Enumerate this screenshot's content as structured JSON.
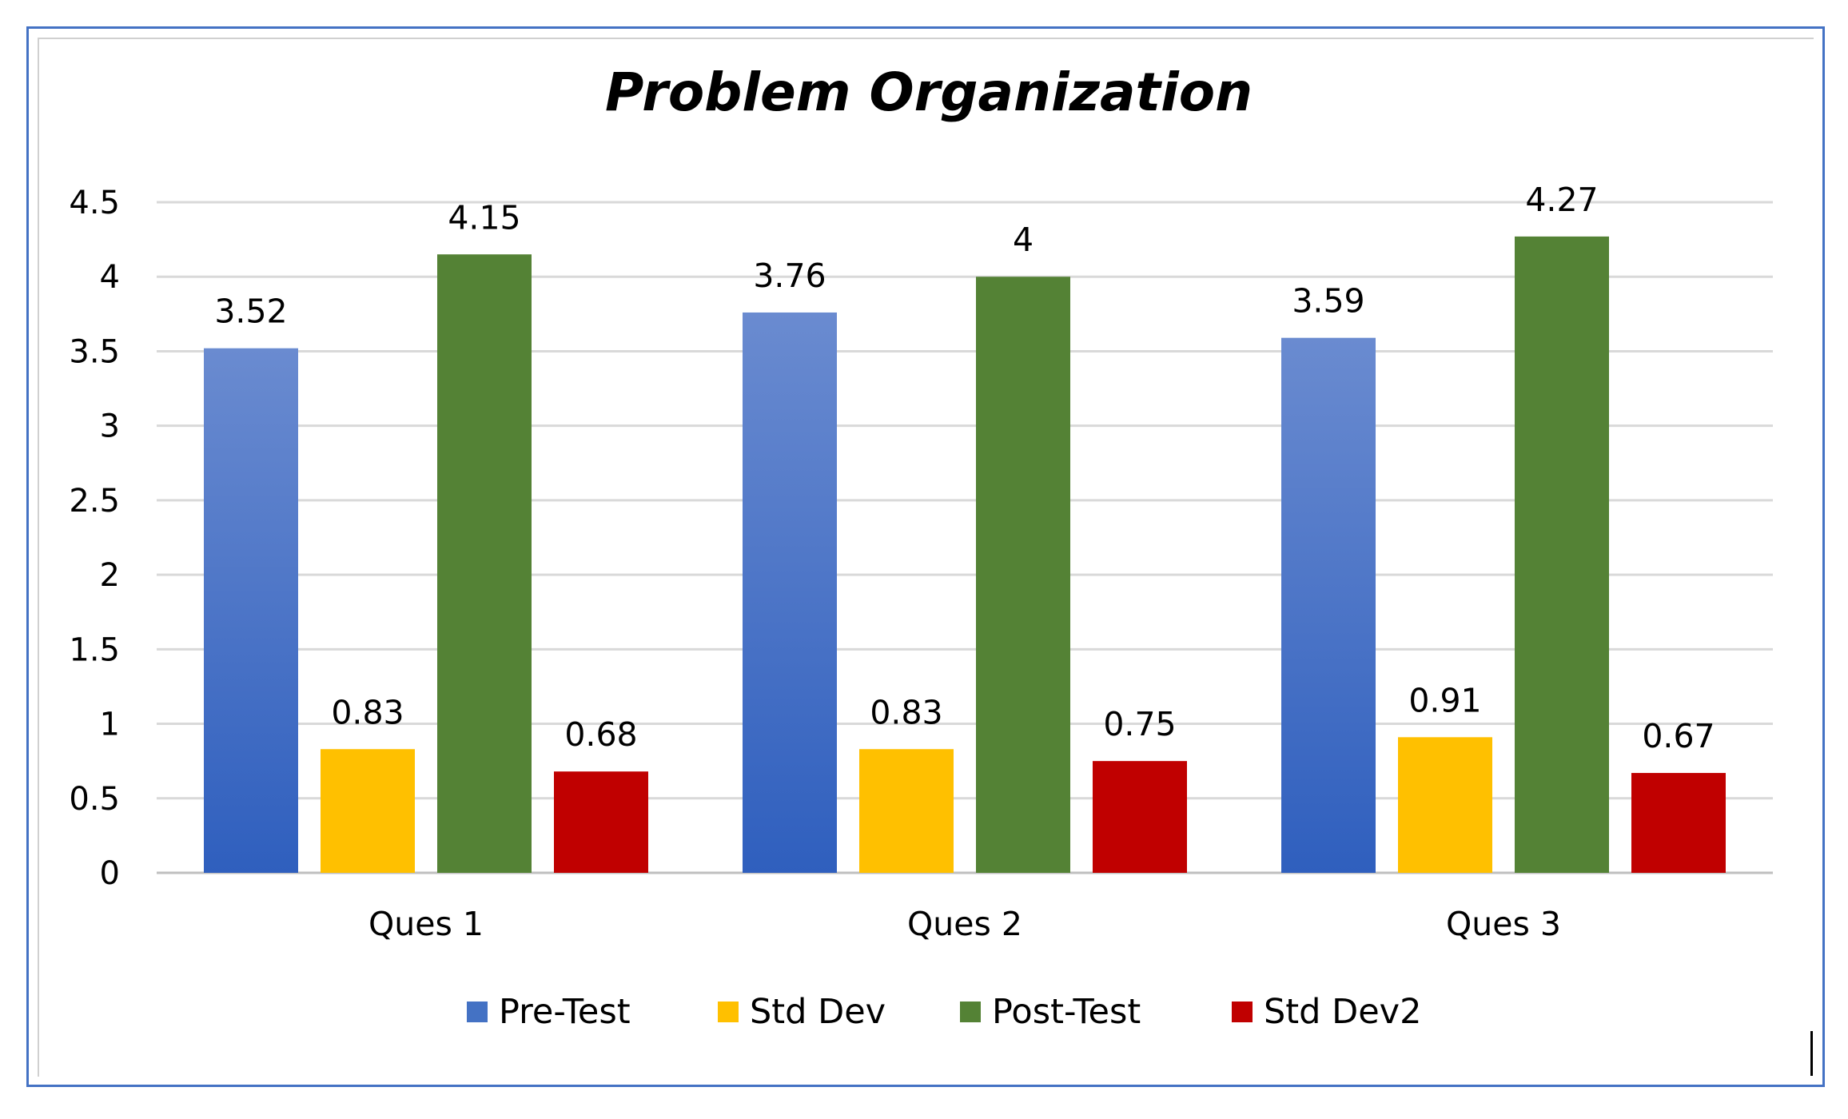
{
  "chart_data": {
    "type": "bar",
    "title": "Problem Organization",
    "xlabel": "",
    "ylabel": "",
    "ylim": [
      0,
      4.5
    ],
    "yticks": [
      "0",
      "0.5",
      "1",
      "1.5",
      "2",
      "2.5",
      "3",
      "3.5",
      "4",
      "4.5"
    ],
    "grid": true,
    "legend_position": "bottom",
    "categories": [
      "Ques 1",
      "Ques 2",
      "Ques 3"
    ],
    "series": [
      {
        "name": "Pre-Test",
        "color": "#4472c4",
        "values": [
          3.52,
          3.76,
          3.59
        ],
        "labels": [
          "3.52",
          "3.76",
          "3.59"
        ]
      },
      {
        "name": "Std Dev",
        "color": "#ffc000",
        "values": [
          0.83,
          0.83,
          0.91
        ],
        "labels": [
          "0.83",
          "0.83",
          "0.91"
        ]
      },
      {
        "name": "Post-Test",
        "color": "#548235",
        "values": [
          4.15,
          4,
          4.27
        ],
        "labels": [
          "4.15",
          "4",
          "4.27"
        ]
      },
      {
        "name": "Std Dev2",
        "color": "#c00000",
        "values": [
          0.68,
          0.75,
          0.67
        ],
        "labels": [
          "0.68",
          "0.75",
          "0.67"
        ]
      }
    ]
  }
}
